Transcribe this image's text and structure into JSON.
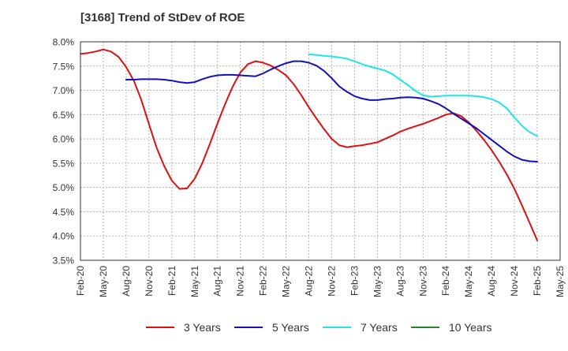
{
  "chart_data": {
    "type": "line",
    "title": "[3168]  Trend of StDev of ROE",
    "xlabel": "",
    "ylabel": "",
    "ylim": [
      3.5,
      8.0
    ],
    "yticks": [
      "3.5%",
      "4.0%",
      "4.5%",
      "5.0%",
      "5.5%",
      "6.0%",
      "6.5%",
      "7.0%",
      "7.5%",
      "8.0%"
    ],
    "xtick_labels": [
      "Feb-20",
      "May-20",
      "Aug-20",
      "Nov-20",
      "Feb-21",
      "May-21",
      "Aug-21",
      "Nov-21",
      "Feb-22",
      "May-22",
      "Aug-22",
      "Nov-22",
      "Feb-23",
      "May-23",
      "Aug-23",
      "Nov-23",
      "Feb-24",
      "May-24",
      "Aug-24",
      "Nov-24",
      "Feb-25",
      "May-25"
    ],
    "grid": true,
    "legend_position": "bottom",
    "series": [
      {
        "name": "3 Years",
        "color": "#dd1111",
        "x": [
          "2020-02",
          "2020-03",
          "2020-04",
          "2020-05",
          "2020-06",
          "2020-07",
          "2020-08",
          "2020-09",
          "2020-10",
          "2020-11",
          "2020-12",
          "2021-01",
          "2021-02",
          "2021-03",
          "2021-04",
          "2021-05",
          "2021-06",
          "2021-07",
          "2021-08",
          "2021-09",
          "2021-10",
          "2021-11",
          "2021-12",
          "2022-01",
          "2022-02",
          "2022-03",
          "2022-04",
          "2022-05",
          "2022-06",
          "2022-07",
          "2022-08",
          "2022-09",
          "2022-10",
          "2022-11",
          "2022-12",
          "2023-01",
          "2023-02",
          "2023-03",
          "2023-04",
          "2023-05",
          "2023-06",
          "2023-07",
          "2023-08",
          "2023-09",
          "2023-10",
          "2023-11",
          "2023-12",
          "2024-01",
          "2024-02",
          "2024-03",
          "2024-04",
          "2024-05",
          "2024-06",
          "2024-07",
          "2024-08",
          "2024-09",
          "2024-10",
          "2024-11",
          "2024-12",
          "2025-01",
          "2025-02"
        ],
        "values": [
          7.75,
          7.77,
          7.8,
          7.84,
          7.8,
          7.69,
          7.48,
          7.2,
          6.8,
          6.3,
          5.82,
          5.44,
          5.14,
          4.97,
          4.98,
          5.18,
          5.5,
          5.9,
          6.32,
          6.72,
          7.08,
          7.37,
          7.54,
          7.6,
          7.57,
          7.51,
          7.42,
          7.31,
          7.13,
          6.9,
          6.65,
          6.42,
          6.2,
          6.0,
          5.87,
          5.83,
          5.85,
          5.87,
          5.9,
          5.93,
          6.0,
          6.07,
          6.15,
          6.21,
          6.26,
          6.31,
          6.37,
          6.43,
          6.5,
          6.53,
          6.47,
          6.34,
          6.17,
          5.98,
          5.77,
          5.53,
          5.27,
          4.97,
          4.63,
          4.27,
          3.91
        ]
      },
      {
        "name": "5 Years",
        "color": "#1111bb",
        "x": [
          "2020-08",
          "2020-09",
          "2020-10",
          "2020-11",
          "2020-12",
          "2021-01",
          "2021-02",
          "2021-03",
          "2021-04",
          "2021-05",
          "2021-06",
          "2021-07",
          "2021-08",
          "2021-09",
          "2021-10",
          "2021-11",
          "2021-12",
          "2022-01",
          "2022-02",
          "2022-03",
          "2022-04",
          "2022-05",
          "2022-06",
          "2022-07",
          "2022-08",
          "2022-09",
          "2022-10",
          "2022-11",
          "2022-12",
          "2023-01",
          "2023-02",
          "2023-03",
          "2023-04",
          "2023-05",
          "2023-06",
          "2023-07",
          "2023-08",
          "2023-09",
          "2023-10",
          "2023-11",
          "2023-12",
          "2024-01",
          "2024-02",
          "2024-03",
          "2024-04",
          "2024-05",
          "2024-06",
          "2024-07",
          "2024-08",
          "2024-09",
          "2024-10",
          "2024-11",
          "2024-12",
          "2025-01",
          "2025-02"
        ],
        "values": [
          7.22,
          7.22,
          7.23,
          7.23,
          7.23,
          7.22,
          7.2,
          7.17,
          7.15,
          7.17,
          7.23,
          7.28,
          7.31,
          7.32,
          7.32,
          7.31,
          7.3,
          7.29,
          7.35,
          7.43,
          7.5,
          7.56,
          7.6,
          7.6,
          7.57,
          7.51,
          7.4,
          7.25,
          7.08,
          6.97,
          6.88,
          6.83,
          6.8,
          6.8,
          6.82,
          6.83,
          6.85,
          6.86,
          6.85,
          6.83,
          6.78,
          6.72,
          6.63,
          6.52,
          6.42,
          6.32,
          6.22,
          6.1,
          5.98,
          5.86,
          5.74,
          5.64,
          5.57,
          5.54,
          5.53
        ]
      },
      {
        "name": "7 Years",
        "color": "#22e5e5",
        "x": [
          "2022-08",
          "2022-09",
          "2022-10",
          "2022-11",
          "2022-12",
          "2023-01",
          "2023-02",
          "2023-03",
          "2023-04",
          "2023-05",
          "2023-06",
          "2023-07",
          "2023-08",
          "2023-09",
          "2023-10",
          "2023-11",
          "2023-12",
          "2024-01",
          "2024-02",
          "2024-03",
          "2024-04",
          "2024-05",
          "2024-06",
          "2024-07",
          "2024-08",
          "2024-09",
          "2024-10",
          "2024-11",
          "2024-12",
          "2025-01",
          "2025-02"
        ],
        "values": [
          7.74,
          7.73,
          7.71,
          7.7,
          7.68,
          7.65,
          7.6,
          7.54,
          7.49,
          7.45,
          7.41,
          7.33,
          7.22,
          7.11,
          6.99,
          6.9,
          6.87,
          6.88,
          6.89,
          6.89,
          6.89,
          6.89,
          6.88,
          6.86,
          6.82,
          6.75,
          6.63,
          6.44,
          6.27,
          6.14,
          6.06
        ]
      },
      {
        "name": "10 Years",
        "color": "#228822",
        "x": [],
        "values": []
      }
    ]
  }
}
